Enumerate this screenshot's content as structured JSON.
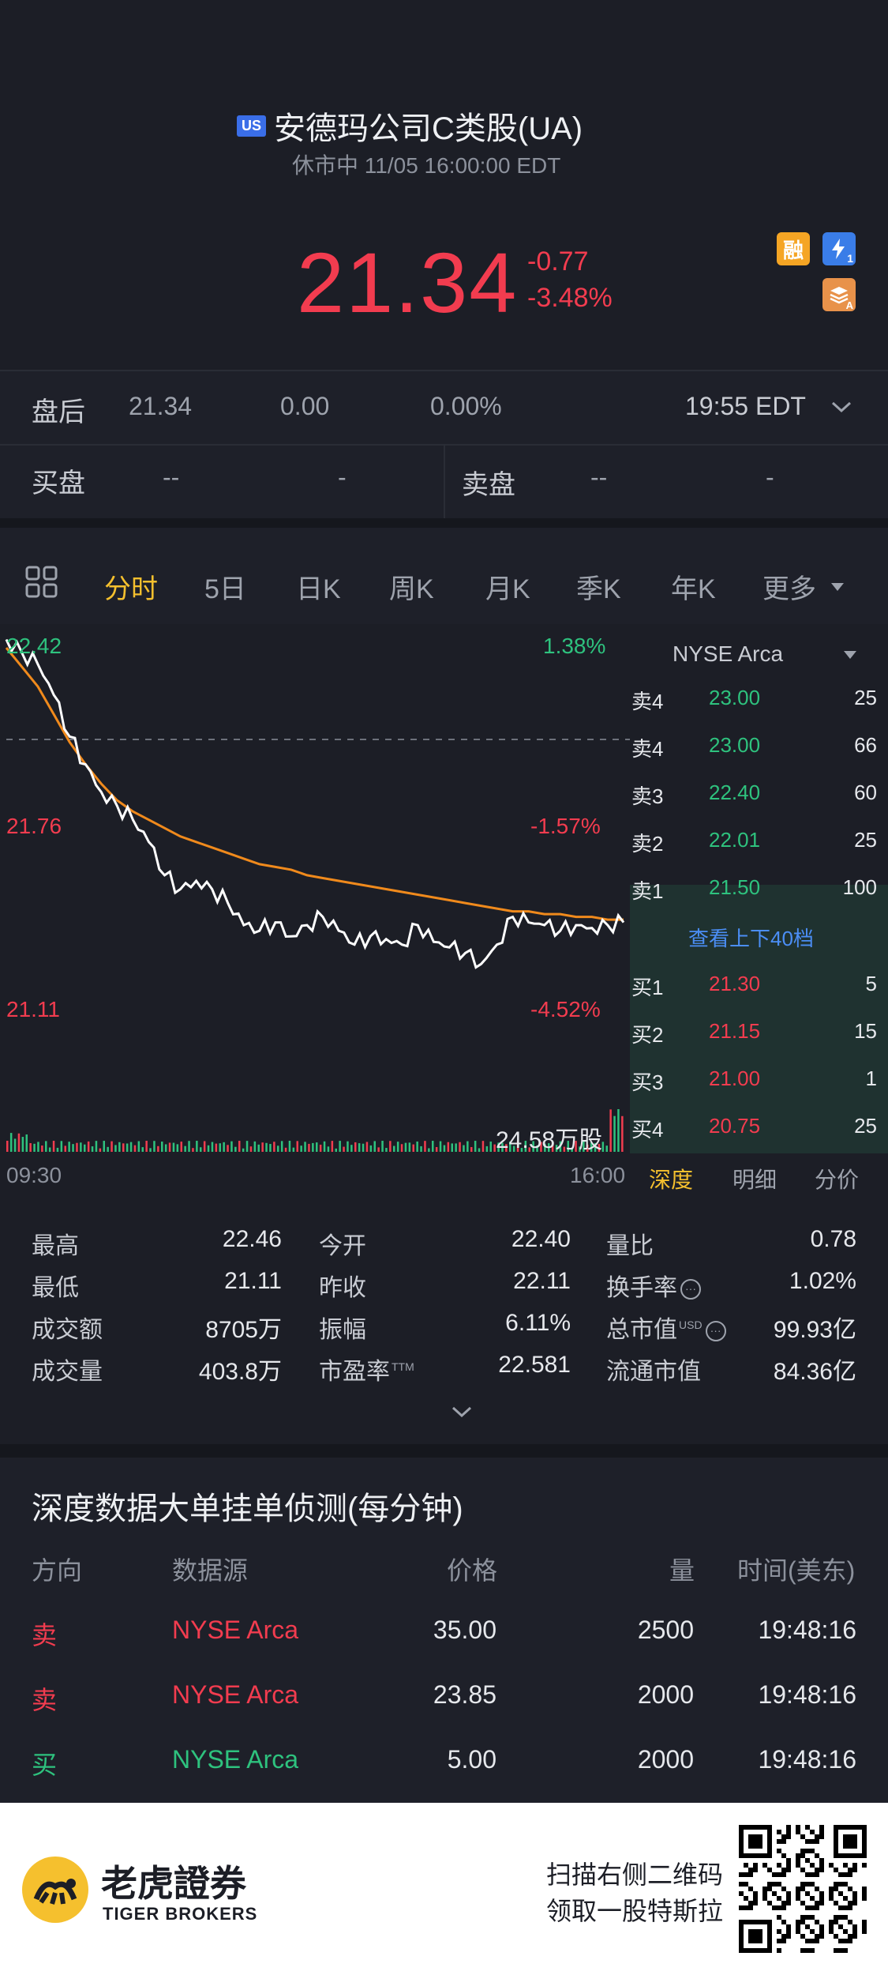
{
  "header": {
    "market_badge": "US",
    "title": "安德玛公司C类股(UA)",
    "status_line": "休市中 11/05 16:00:00 EDT",
    "price": "21.34",
    "change": "-0.77",
    "change_pct": "-3.48%",
    "tag_margin": "融",
    "tag_fast": "1",
    "tag_a": "A",
    "colors": {
      "down": "#f23c4f",
      "up": "#2ec27e",
      "accent": "#f5c02e",
      "badge": "#3a6ee8"
    }
  },
  "after_hours": {
    "label": "盘后",
    "price": "21.34",
    "change": "0.00",
    "change_pct": "0.00%",
    "time": "19:55 EDT"
  },
  "bid_ask": {
    "bid_label": "买盘",
    "bid_price": "--",
    "bid_size": "-",
    "ask_label": "卖盘",
    "ask_price": "--",
    "ask_size": "-"
  },
  "tabs": {
    "grid_icon": "grid-icon",
    "items": [
      "分时",
      "5日",
      "日K",
      "周K",
      "月K",
      "季K",
      "年K",
      "更多"
    ],
    "active": "分时"
  },
  "chart": {
    "y_top": "22.42",
    "y_mid": "21.76",
    "y_bottom": "21.11",
    "pct_top": "1.38%",
    "pct_mid": "-1.57%",
    "pct_bottom": "-4.52%",
    "x_start": "09:30",
    "x_end": "16:00",
    "volume_label": "24.58万股"
  },
  "chart_data": {
    "type": "line",
    "x_range": [
      "09:30",
      "16:00"
    ],
    "ylim": [
      21.11,
      22.42
    ],
    "reference_close": 22.11,
    "series": [
      {
        "values": [
          22.45,
          22.4,
          22.36,
          22.25,
          22.1,
          22.0,
          21.9,
          21.85,
          21.8,
          21.72,
          21.6,
          21.55,
          21.58,
          21.55,
          21.5,
          21.42,
          21.4,
          21.43,
          21.38,
          21.42,
          21.45,
          21.4,
          21.35,
          21.38,
          21.37,
          21.35,
          21.42,
          21.36,
          21.34,
          21.32,
          21.28,
          21.35,
          21.45,
          21.43,
          21.42,
          21.4,
          21.42,
          21.41,
          21.42,
          21.43
        ]
      },
      {
        "values": [
          22.42,
          22.35,
          22.28,
          22.18,
          22.08,
          22.0,
          21.93,
          21.87,
          21.83,
          21.8,
          21.77,
          21.74,
          21.72,
          21.7,
          21.68,
          21.66,
          21.64,
          21.63,
          21.62,
          21.6,
          21.59,
          21.58,
          21.57,
          21.56,
          21.55,
          21.54,
          21.53,
          21.52,
          21.51,
          21.5,
          21.49,
          21.48,
          21.47,
          21.47,
          21.46,
          21.46,
          21.45,
          21.45,
          21.44,
          21.44
        ]
      }
    ]
  },
  "orderbook": {
    "source": "NYSE Arca",
    "asks": [
      {
        "label": "卖4",
        "price": "23.00",
        "size": "25"
      },
      {
        "label": "卖4",
        "price": "23.00",
        "size": "66"
      },
      {
        "label": "卖3",
        "price": "22.40",
        "size": "60"
      },
      {
        "label": "卖2",
        "price": "22.01",
        "size": "25"
      },
      {
        "label": "卖1",
        "price": "21.50",
        "size": "100"
      }
    ],
    "view_more": "查看上下40档",
    "bids": [
      {
        "label": "买1",
        "price": "21.30",
        "size": "5"
      },
      {
        "label": "买2",
        "price": "21.15",
        "size": "15"
      },
      {
        "label": "买3",
        "price": "21.00",
        "size": "1"
      },
      {
        "label": "买4",
        "price": "20.75",
        "size": "25"
      }
    ],
    "subtabs": [
      "深度",
      "明细",
      "分价"
    ],
    "active_subtab": "深度"
  },
  "stats": {
    "col1": [
      {
        "label": "最高",
        "value": "22.46"
      },
      {
        "label": "最低",
        "value": "21.11"
      },
      {
        "label": "成交额",
        "value": "8705万"
      },
      {
        "label": "成交量",
        "value": "403.8万"
      }
    ],
    "col2": [
      {
        "label": "今开",
        "value": "22.40"
      },
      {
        "label": "昨收",
        "value": "22.11"
      },
      {
        "label": "振幅",
        "value": "6.11%"
      },
      {
        "label": "市盈率",
        "value": "22.581",
        "sup": "TTM"
      }
    ],
    "col3": [
      {
        "label": "量比",
        "value": "0.78"
      },
      {
        "label": "换手率",
        "value": "1.02%"
      },
      {
        "label": "总市值",
        "value": "99.93亿",
        "sup": "USD"
      },
      {
        "label": "流通市值",
        "value": "84.36亿"
      }
    ]
  },
  "depth": {
    "title": "深度数据大单挂单侦测(每分钟)",
    "headers": [
      "方向",
      "数据源",
      "价格",
      "量",
      "时间(美东)"
    ],
    "rows": [
      {
        "dir": "卖",
        "source": "NYSE Arca",
        "price": "35.00",
        "qty": "2500",
        "time": "19:48:16",
        "side": "sell"
      },
      {
        "dir": "卖",
        "source": "NYSE Arca",
        "price": "23.85",
        "qty": "2000",
        "time": "19:48:16",
        "side": "sell"
      },
      {
        "dir": "买",
        "source": "NYSE Arca",
        "price": "5.00",
        "qty": "2000",
        "time": "19:48:16",
        "side": "buy"
      }
    ]
  },
  "footer": {
    "brand_cn": "老虎證券",
    "brand_en": "TIGER BROKERS",
    "promo_line1": "扫描右侧二维码",
    "promo_line2": "领取一股特斯拉"
  }
}
